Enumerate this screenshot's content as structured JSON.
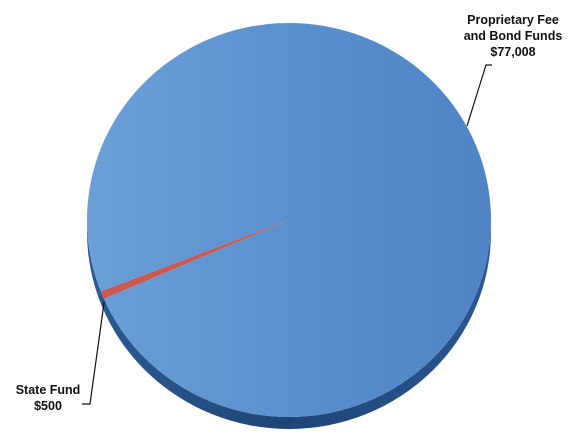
{
  "chart_data": {
    "type": "pie",
    "title": "",
    "slices": [
      {
        "label_lines": [
          "Proprietary Fee",
          "and Bond Funds"
        ],
        "value_text": "$77,008",
        "value": 77008,
        "color": "#5a8fce"
      },
      {
        "label_lines": [
          "State Fund"
        ],
        "value_text": "$500",
        "value": 500,
        "color": "#c95a52"
      }
    ],
    "legend": "none",
    "style": "3d-tilted"
  }
}
